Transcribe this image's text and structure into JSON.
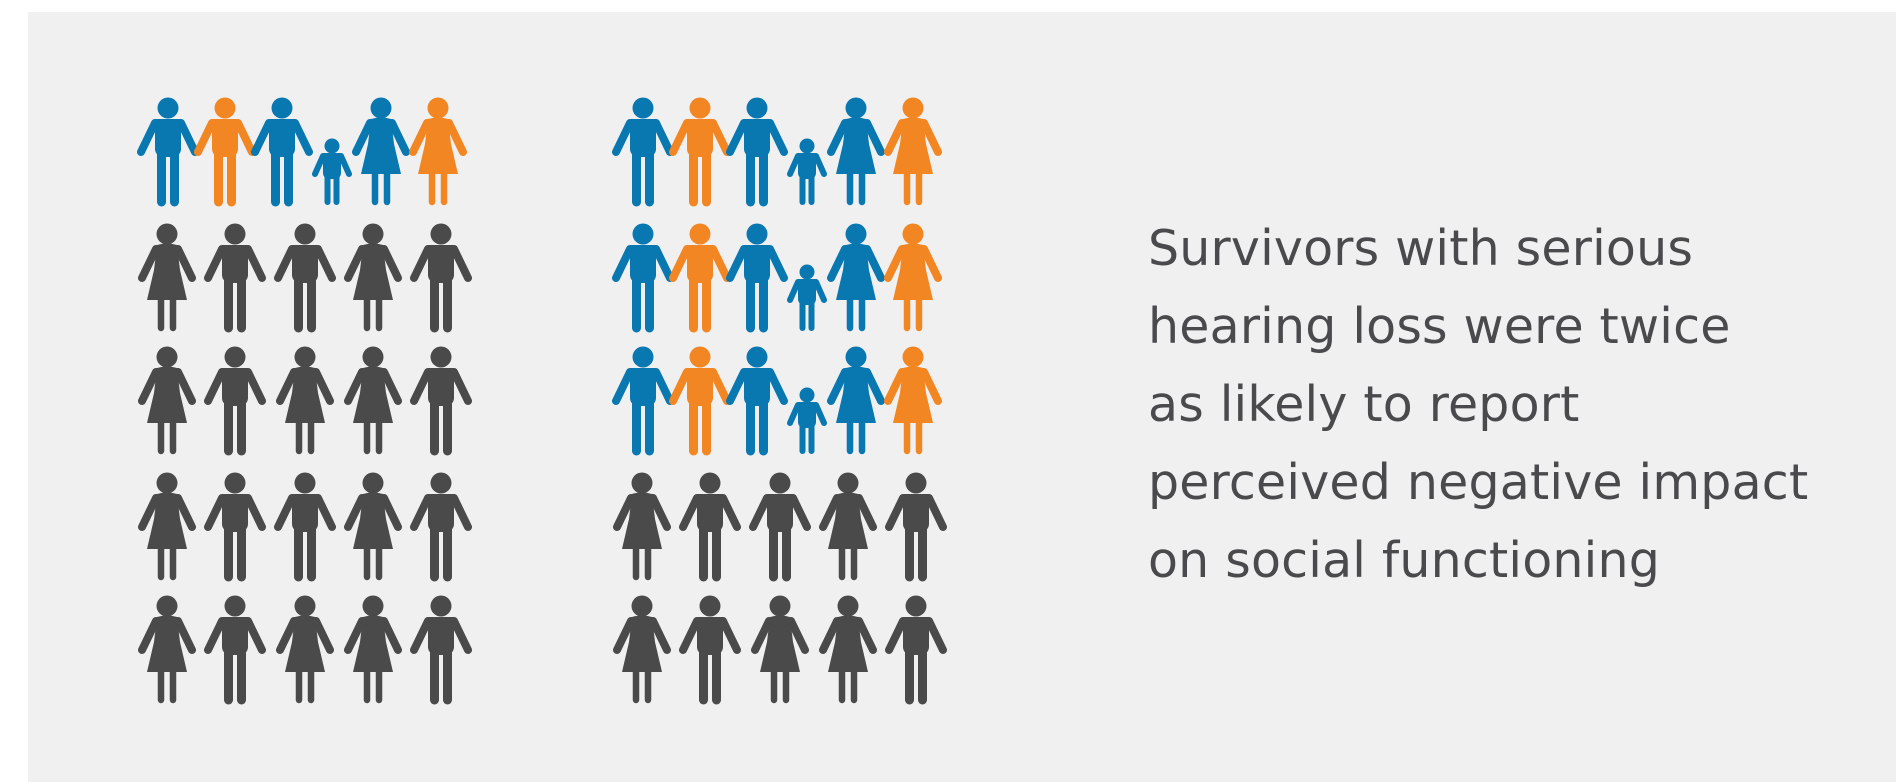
{
  "caption": {
    "lines": [
      "Survivors with serious",
      "hearing loss were twice",
      "as likely to report",
      "perceived negative impact",
      "on social functioning"
    ]
  },
  "colors": {
    "background": "#f0f0f1",
    "text": "#4a4a4d",
    "highlight_blue": "#0977b0",
    "highlight_orange": "#f28623",
    "neutral_gray": "#4a4a4a"
  },
  "pictograph": {
    "groups": [
      {
        "id": "left-group",
        "highlighted_rows": 1,
        "total_rows": 5
      },
      {
        "id": "right-group",
        "highlighted_rows": 3,
        "total_rows": 5
      }
    ],
    "highlight_row_pattern": [
      "man-blue",
      "man-orange",
      "man-blue",
      "child-blue",
      "woman-blue",
      "woman-orange"
    ],
    "gray_row_patterns": [
      [
        "woman",
        "man",
        "man",
        "woman",
        "man"
      ],
      [
        "woman",
        "man",
        "woman",
        "woman",
        "man"
      ],
      [
        "woman",
        "man",
        "man",
        "woman",
        "man"
      ],
      [
        "woman",
        "man",
        "woman",
        "woman",
        "man"
      ]
    ]
  }
}
